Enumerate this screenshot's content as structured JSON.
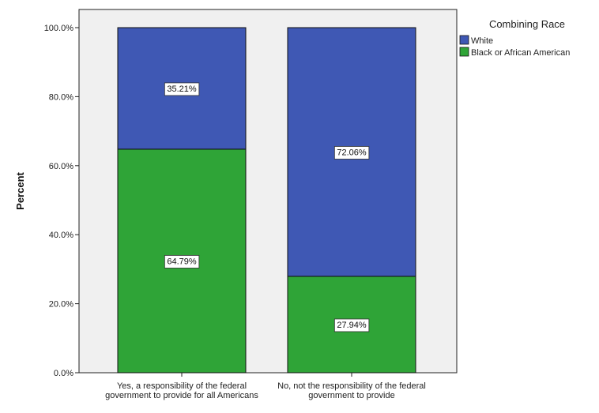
{
  "chart_data": {
    "type": "bar",
    "stacked": true,
    "categories": [
      "Yes, a responsibility of the federal government to provide for all Americans",
      "No, not the responsibility of the federal government to provide"
    ],
    "series": [
      {
        "name": "Black or African American",
        "values": [
          64.79,
          27.94
        ],
        "color": "#2fa437"
      },
      {
        "name": "White",
        "values": [
          35.21,
          72.06
        ],
        "color": "#3f58b4"
      }
    ],
    "data_labels": [
      {
        "category": 0,
        "series": 0,
        "text": "64.79%"
      },
      {
        "category": 0,
        "series": 1,
        "text": "35.21%"
      },
      {
        "category": 1,
        "series": 0,
        "text": "27.94%"
      },
      {
        "category": 1,
        "series": 1,
        "text": "72.06%"
      }
    ],
    "ylabel": "Percent",
    "xlabel": "",
    "ylim": [
      0,
      100
    ],
    "yticks": [
      "0.0%",
      "20.0%",
      "40.0%",
      "60.0%",
      "80.0%",
      "100.0%"
    ],
    "grid": false,
    "legend": {
      "title": "Combining Race",
      "placement": "top-right",
      "entries": [
        "White",
        "Black or African American"
      ]
    }
  }
}
